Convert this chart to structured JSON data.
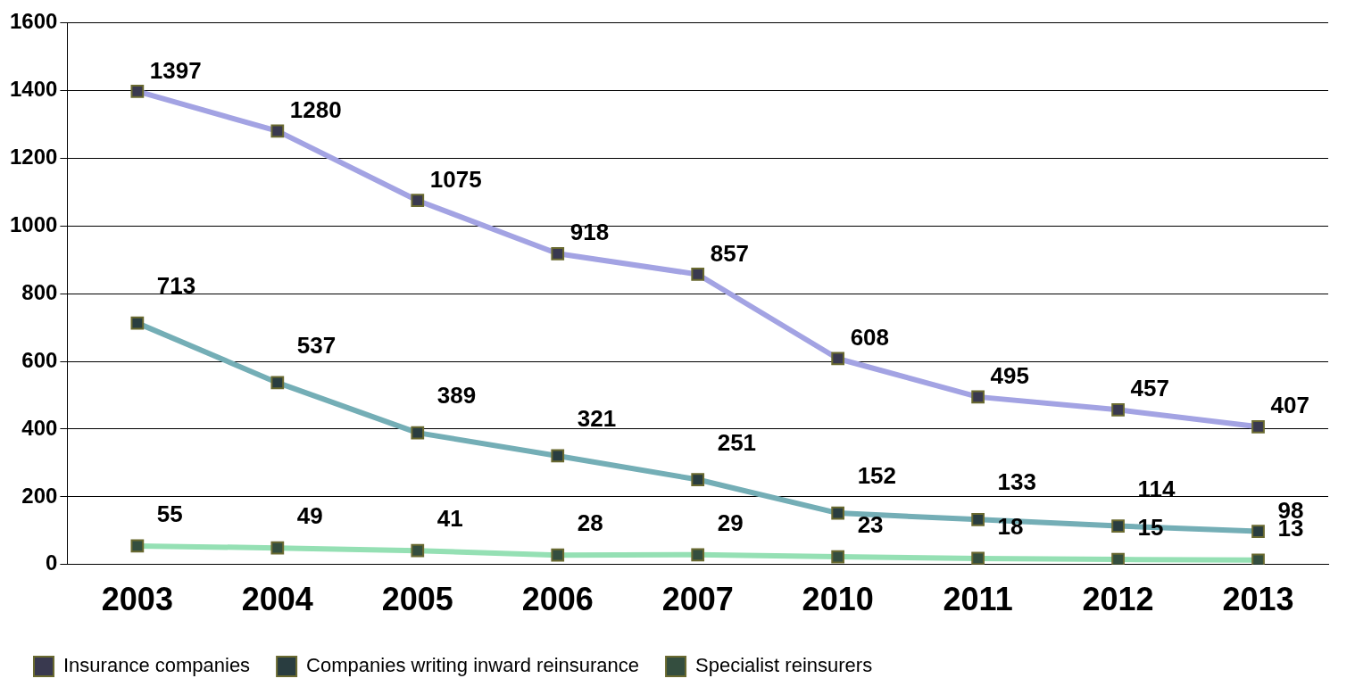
{
  "chart_data": {
    "type": "line",
    "categories": [
      "2003",
      "2004",
      "2005",
      "2006",
      "2007",
      "2010",
      "2011",
      "2012",
      "2013"
    ],
    "series": [
      {
        "name": "Insurance companies",
        "color": "#a3a3e3",
        "values": [
          1397,
          1280,
          1075,
          918,
          857,
          608,
          495,
          457,
          407
        ]
      },
      {
        "name": "Companies writing inward reinsurance",
        "color": "#74aeb6",
        "values": [
          713,
          537,
          389,
          321,
          251,
          152,
          133,
          114,
          98
        ]
      },
      {
        "name": "Specialist reinsurers",
        "color": "#95e0b4",
        "values": [
          55,
          49,
          41,
          28,
          29,
          23,
          18,
          15,
          13
        ]
      }
    ],
    "ylim": [
      0,
      1600
    ],
    "yticks": [
      0,
      200,
      400,
      600,
      800,
      1000,
      1200,
      1400,
      1600
    ],
    "grid": "y",
    "legend": "bottom",
    "marker": "square",
    "line_style": "solid",
    "data_labels": true
  }
}
